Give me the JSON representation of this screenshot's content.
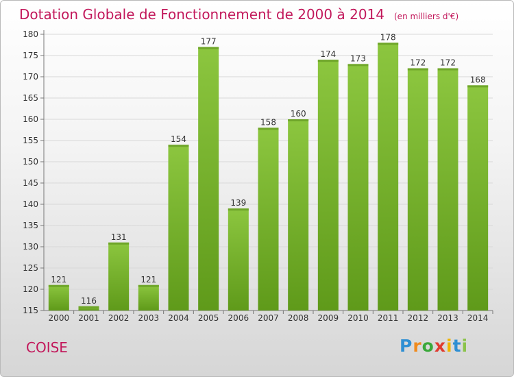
{
  "chart_data": {
    "type": "bar",
    "title": "Dotation Globale de Fonctionnement de 2000 à 2014",
    "unit_label": "(en milliers d'€)",
    "categories": [
      "2000",
      "2001",
      "2002",
      "2003",
      "2004",
      "2005",
      "2006",
      "2007",
      "2008",
      "2009",
      "2010",
      "2011",
      "2012",
      "2013",
      "2014"
    ],
    "values": [
      121,
      116,
      131,
      121,
      154,
      177,
      139,
      158,
      160,
      174,
      173,
      178,
      172,
      172,
      168
    ],
    "ylim": [
      115,
      180
    ],
    "yticks": [
      115,
      120,
      125,
      130,
      135,
      140,
      145,
      150,
      155,
      160,
      165,
      170,
      175,
      180
    ],
    "grid": true,
    "bar_color": "#8cc63f",
    "bar_color_dark": "#5f9a1a"
  },
  "commune_name": "COISE",
  "brand": {
    "name": "Proxiti"
  },
  "colors": {
    "title": "#c2185b",
    "grid": "#d8d8d8"
  }
}
